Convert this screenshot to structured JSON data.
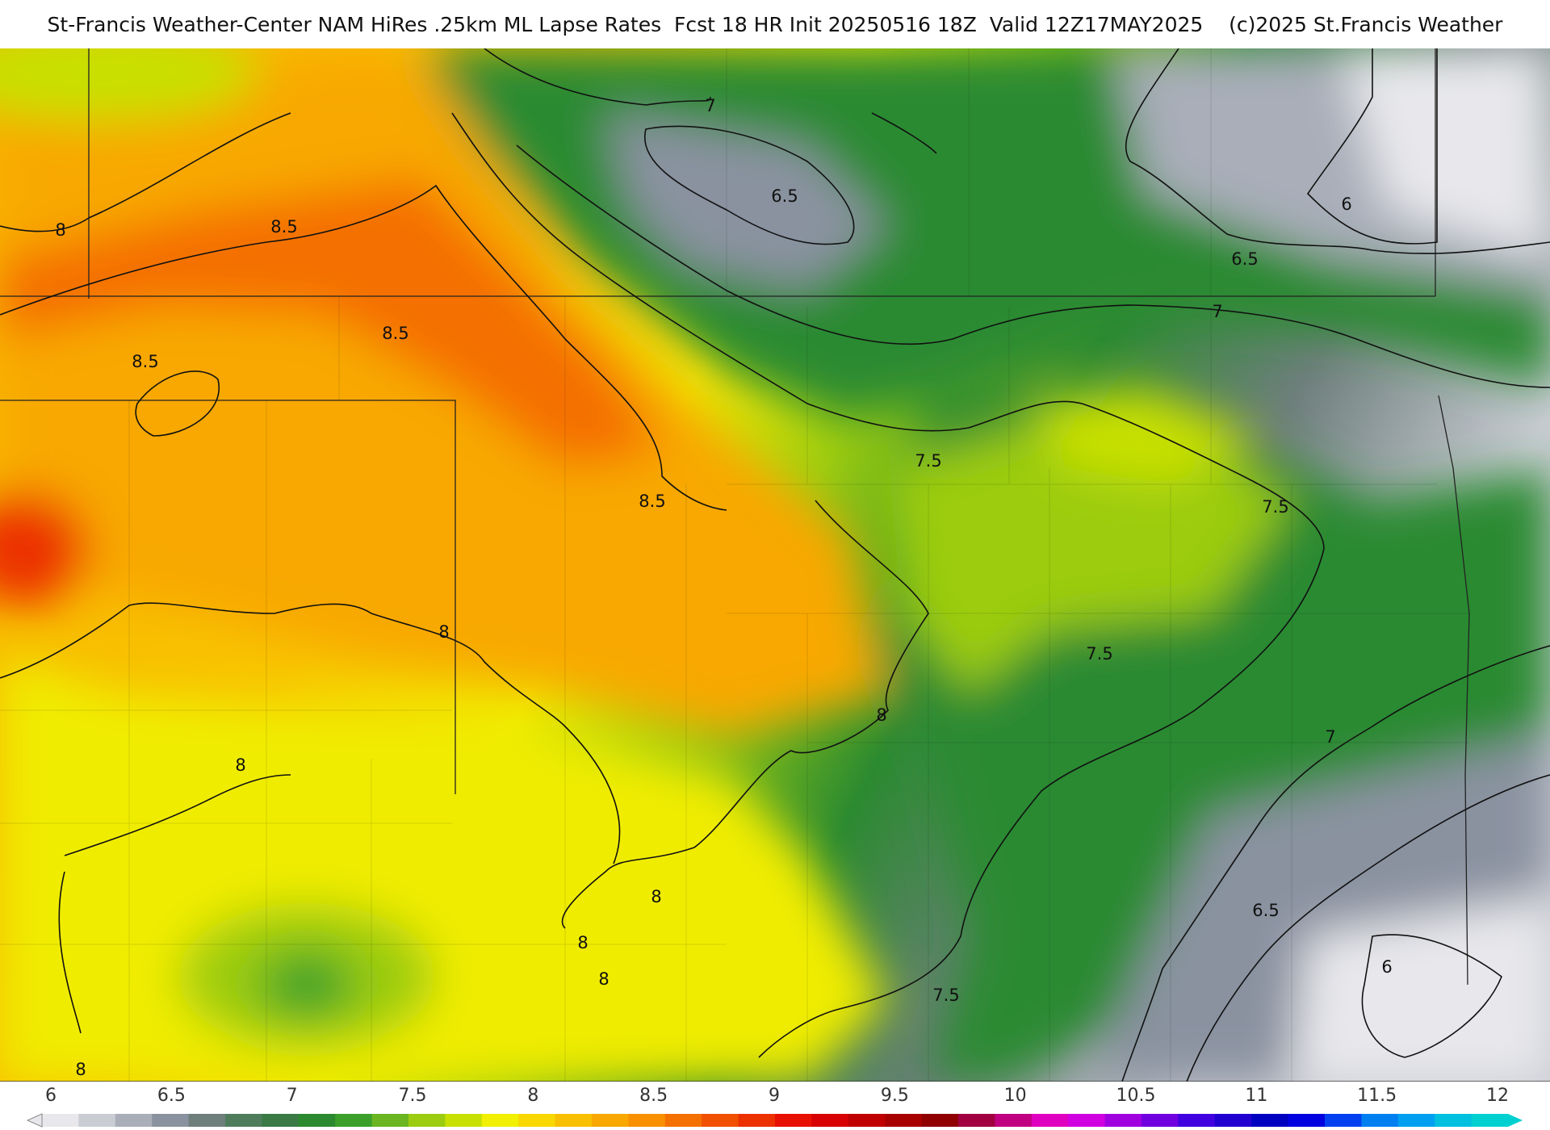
{
  "title": "St-Francis Weather-Center NAM HiRes .25km ML Lapse Rates  Fcst 18 HR Init 20250516 18Z  Valid 12Z17MAY2025    (c)2025 St.Francis Weather",
  "colorbar": {
    "tick_labels": [
      "6",
      "6.5",
      "7",
      "7.5",
      "8",
      "8.5",
      "9",
      "9.5",
      "10",
      "10.5",
      "11",
      "11.5",
      "12"
    ],
    "colors": [
      "#e8e8ec",
      "#c9ccd3",
      "#a9aeb9",
      "#8a92a0",
      "#6e7f7c",
      "#4f7d5c",
      "#3a7a45",
      "#2b8a30",
      "#3aa02a",
      "#6ab520",
      "#9ccc10",
      "#c8e000",
      "#f0f000",
      "#f8d800",
      "#f8c000",
      "#f8a800",
      "#f89000",
      "#f47000",
      "#f05000",
      "#ec3000",
      "#e81000",
      "#d80000",
      "#c00000",
      "#a80000",
      "#900000",
      "#a00040",
      "#c00080",
      "#e000c0",
      "#d000e0",
      "#a000e0",
      "#7000e0",
      "#4000e0",
      "#2000d0",
      "#0000c0",
      "#0000e0",
      "#0040f0",
      "#0080f0",
      "#00a0f0",
      "#00c0e0",
      "#00d0d0"
    ]
  },
  "contour_labels": [
    {
      "text": "7"
    },
    {
      "text": "6.5"
    },
    {
      "text": "6"
    },
    {
      "text": "6.5"
    },
    {
      "text": "7"
    },
    {
      "text": "8"
    },
    {
      "text": "8.5"
    },
    {
      "text": "8.5"
    },
    {
      "text": "8.5"
    },
    {
      "text": "7.5"
    },
    {
      "text": "8.5"
    },
    {
      "text": "7.5"
    },
    {
      "text": "8"
    },
    {
      "text": "7.5"
    },
    {
      "text": "8"
    },
    {
      "text": "7"
    },
    {
      "text": "8"
    },
    {
      "text": "8"
    },
    {
      "text": "8"
    },
    {
      "text": "8"
    },
    {
      "text": "6.5"
    },
    {
      "text": "6"
    },
    {
      "text": "7.5"
    },
    {
      "text": "8"
    }
  ]
}
